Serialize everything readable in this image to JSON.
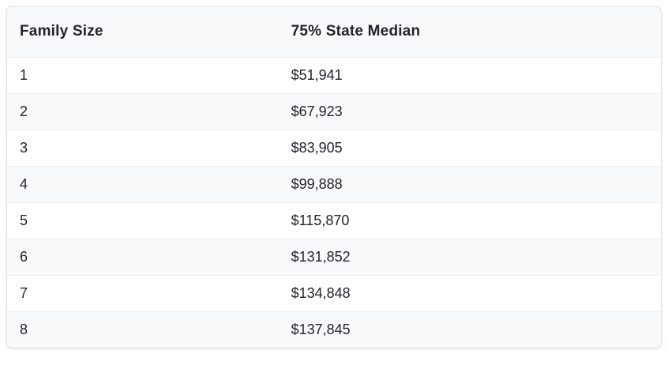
{
  "table": {
    "columns": [
      {
        "label": "Family Size"
      },
      {
        "label": "75% State Median"
      }
    ],
    "rows": [
      [
        "1",
        "$51,941"
      ],
      [
        "2",
        "$67,923"
      ],
      [
        "3",
        "$83,905"
      ],
      [
        "4",
        "$99,888"
      ],
      [
        "5",
        "$115,870"
      ],
      [
        "6",
        "$131,852"
      ],
      [
        "7",
        "$134,848"
      ],
      [
        "8",
        "$137,845"
      ]
    ]
  },
  "colors": {
    "header_bg": "#f8f9fa",
    "stripe_bg": "#f8f9fa",
    "row_bg": "#ffffff",
    "outer_border": "#dee2e6",
    "row_divider": "#eef0f2",
    "text": "#212529"
  }
}
